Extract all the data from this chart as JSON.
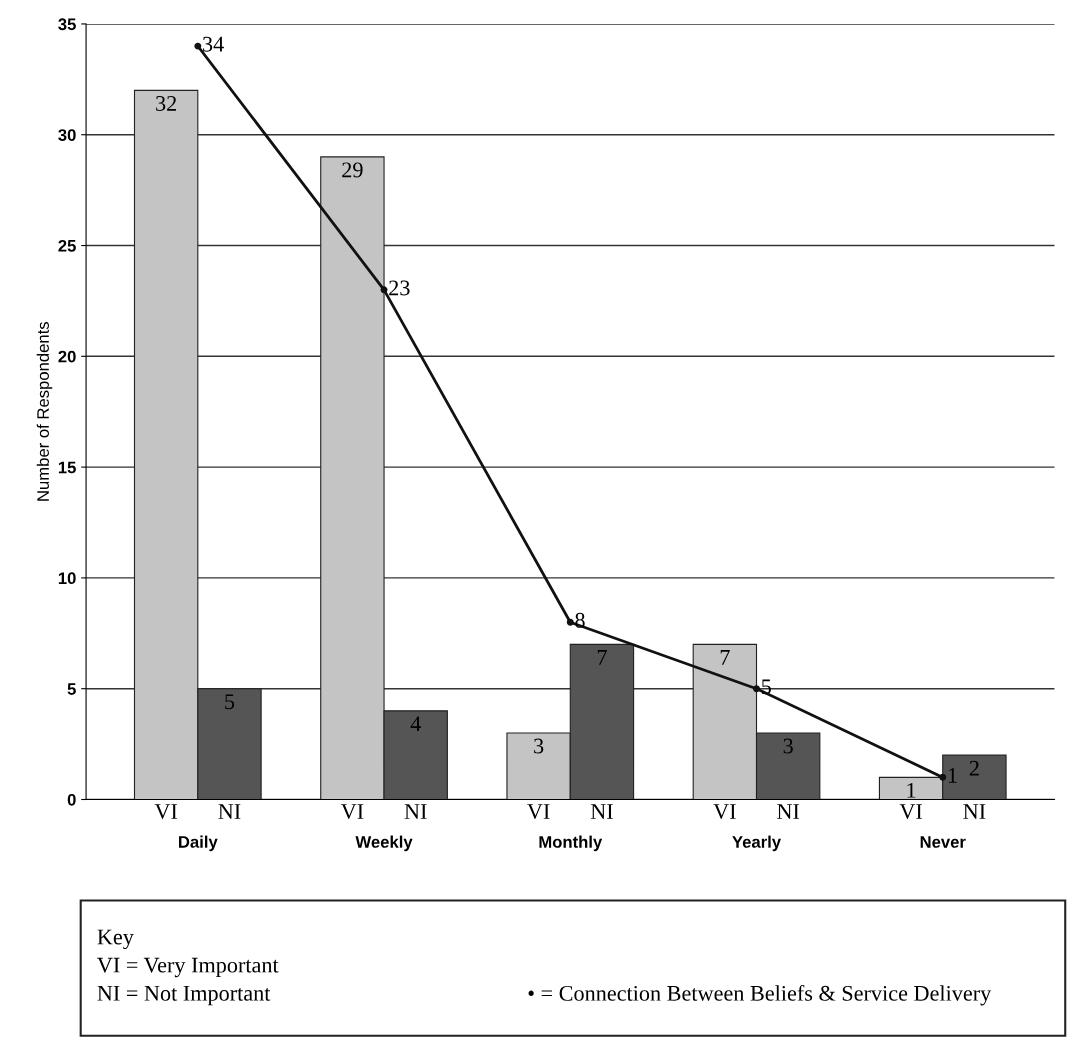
{
  "chart_data": {
    "type": "bar",
    "ylabel": "Number of Respondents",
    "categories": [
      "Daily",
      "Weekly",
      "Monthly",
      "Yearly",
      "Never"
    ],
    "series": [
      {
        "name": "VI",
        "color": "#c4c4c4",
        "values": [
          32,
          29,
          3,
          7,
          1
        ]
      },
      {
        "name": "NI",
        "color": "#555555",
        "values": [
          5,
          4,
          7,
          3,
          2
        ]
      },
      {
        "type": "line",
        "color": "#111111",
        "values": [
          34,
          23,
          8,
          5,
          1
        ]
      }
    ],
    "ylim": [
      0,
      35
    ],
    "yticks": [
      0,
      5,
      10,
      15,
      20,
      25,
      30,
      35
    ],
    "grid": "y",
    "legend": false,
    "data_labels": true,
    "marker": "circle",
    "line_style": "solid",
    "annotations": [
      "Key",
      "VI = Very Important",
      "NI = Not Important",
      "• = Connection Between Beliefs & Service Delivery"
    ]
  }
}
